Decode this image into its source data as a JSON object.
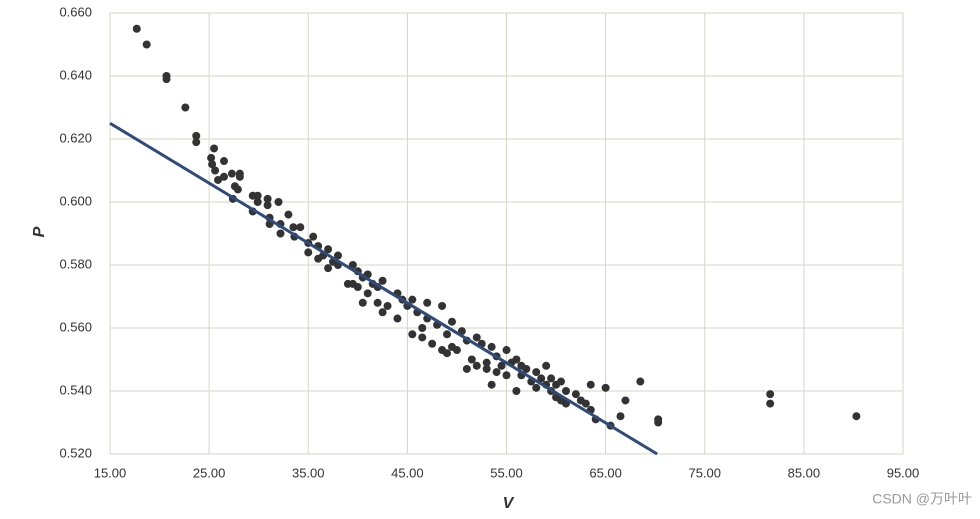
{
  "chart_data": {
    "type": "scatter",
    "x_label": "V",
    "y_label": "P",
    "annotation": "CSDN @万叶叶",
    "xlim": [
      15,
      95
    ],
    "xticks": [
      {
        "value": 15,
        "label": "15.00"
      },
      {
        "value": 25,
        "label": "25.00"
      },
      {
        "value": 35,
        "label": "35.00"
      },
      {
        "value": 45,
        "label": "45.00"
      },
      {
        "value": 55,
        "label": "55.00"
      },
      {
        "value": 65,
        "label": "65.00"
      },
      {
        "value": 75,
        "label": "75.00"
      },
      {
        "value": 85,
        "label": "85.00"
      },
      {
        "value": 95,
        "label": "95.00"
      }
    ],
    "ylim": [
      0.52,
      0.66
    ],
    "yticks": [
      {
        "value": 0.52,
        "label": "0.520"
      },
      {
        "value": 0.54,
        "label": "0.540"
      },
      {
        "value": 0.56,
        "label": "0.560"
      },
      {
        "value": 0.58,
        "label": "0.580"
      },
      {
        "value": 0.6,
        "label": "0.600"
      },
      {
        "value": 0.62,
        "label": "0.620"
      },
      {
        "value": 0.64,
        "label": "0.640"
      },
      {
        "value": 0.66,
        "label": "0.660"
      }
    ],
    "grid": true,
    "series": [
      {
        "color": "#333333",
        "x": [
          17.7,
          18.7,
          20.7,
          20.7,
          22.6,
          23.7,
          23.7,
          25.2,
          25.5,
          25.3,
          25.6,
          25.9,
          26.5,
          26.5,
          27.3,
          27.6,
          27.9,
          28.1,
          28.1,
          27.4,
          29.4,
          29.9,
          29.9,
          29.4,
          30.9,
          30.9,
          32.0,
          31.1,
          31.1,
          32.2,
          32.2,
          33.0,
          33.5,
          34.2,
          33.6,
          35,
          35,
          35.5,
          36,
          36,
          36.5,
          37,
          37,
          37.5,
          38,
          38,
          39,
          39.5,
          39.5,
          40,
          40,
          40.5,
          40.5,
          41,
          41,
          41.5,
          42,
          42,
          42.5,
          42.5,
          43,
          44,
          44,
          44.5,
          45,
          45.5,
          45.5,
          46,
          46.5,
          46.5,
          47,
          47,
          47.5,
          48,
          48.5,
          48.5,
          49,
          49,
          49.5,
          49.5,
          50,
          50.5,
          51,
          51,
          51.5,
          52,
          52,
          52.5,
          53,
          53,
          53.5,
          53.5,
          54,
          54,
          54.5,
          55,
          55,
          55.5,
          56,
          56,
          56.5,
          56.5,
          57,
          57.5,
          58,
          58,
          58.5,
          59,
          59,
          59.5,
          59.5,
          60,
          60,
          60.5,
          60.5,
          61,
          61,
          62,
          62.5,
          63,
          63.5,
          63.5,
          64,
          65,
          65.5,
          66.5,
          67,
          68.5,
          70.3,
          70.3,
          81.6,
          81.6,
          90.3
        ],
        "values": [
          0.655,
          0.65,
          0.64,
          0.639,
          0.63,
          0.621,
          0.619,
          0.614,
          0.617,
          0.612,
          0.61,
          0.607,
          0.613,
          0.608,
          0.609,
          0.605,
          0.604,
          0.608,
          0.609,
          0.601,
          0.602,
          0.602,
          0.6,
          0.597,
          0.601,
          0.599,
          0.6,
          0.595,
          0.593,
          0.593,
          0.59,
          0.596,
          0.592,
          0.592,
          0.589,
          0.587,
          0.584,
          0.589,
          0.582,
          0.586,
          0.583,
          0.585,
          0.579,
          0.581,
          0.583,
          0.58,
          0.574,
          0.58,
          0.574,
          0.578,
          0.573,
          0.568,
          0.576,
          0.571,
          0.577,
          0.574,
          0.568,
          0.573,
          0.565,
          0.575,
          0.567,
          0.563,
          0.571,
          0.569,
          0.567,
          0.558,
          0.569,
          0.565,
          0.557,
          0.56,
          0.563,
          0.568,
          0.555,
          0.561,
          0.553,
          0.567,
          0.558,
          0.552,
          0.554,
          0.562,
          0.553,
          0.559,
          0.547,
          0.556,
          0.55,
          0.548,
          0.557,
          0.555,
          0.549,
          0.547,
          0.542,
          0.554,
          0.546,
          0.551,
          0.548,
          0.553,
          0.545,
          0.549,
          0.54,
          0.55,
          0.545,
          0.548,
          0.547,
          0.543,
          0.546,
          0.541,
          0.544,
          0.548,
          0.542,
          0.544,
          0.54,
          0.538,
          0.542,
          0.543,
          0.537,
          0.536,
          0.54,
          0.539,
          0.537,
          0.536,
          0.542,
          0.534,
          0.531,
          0.541,
          0.529,
          0.532,
          0.537,
          0.543,
          0.531,
          0.53,
          0.539,
          0.536,
          0.532
        ]
      },
      {
        "color": "#2f4b7c",
        "line": true,
        "x": [
          15,
          70.2
        ],
        "values": [
          0.625,
          0.52
        ]
      }
    ]
  }
}
